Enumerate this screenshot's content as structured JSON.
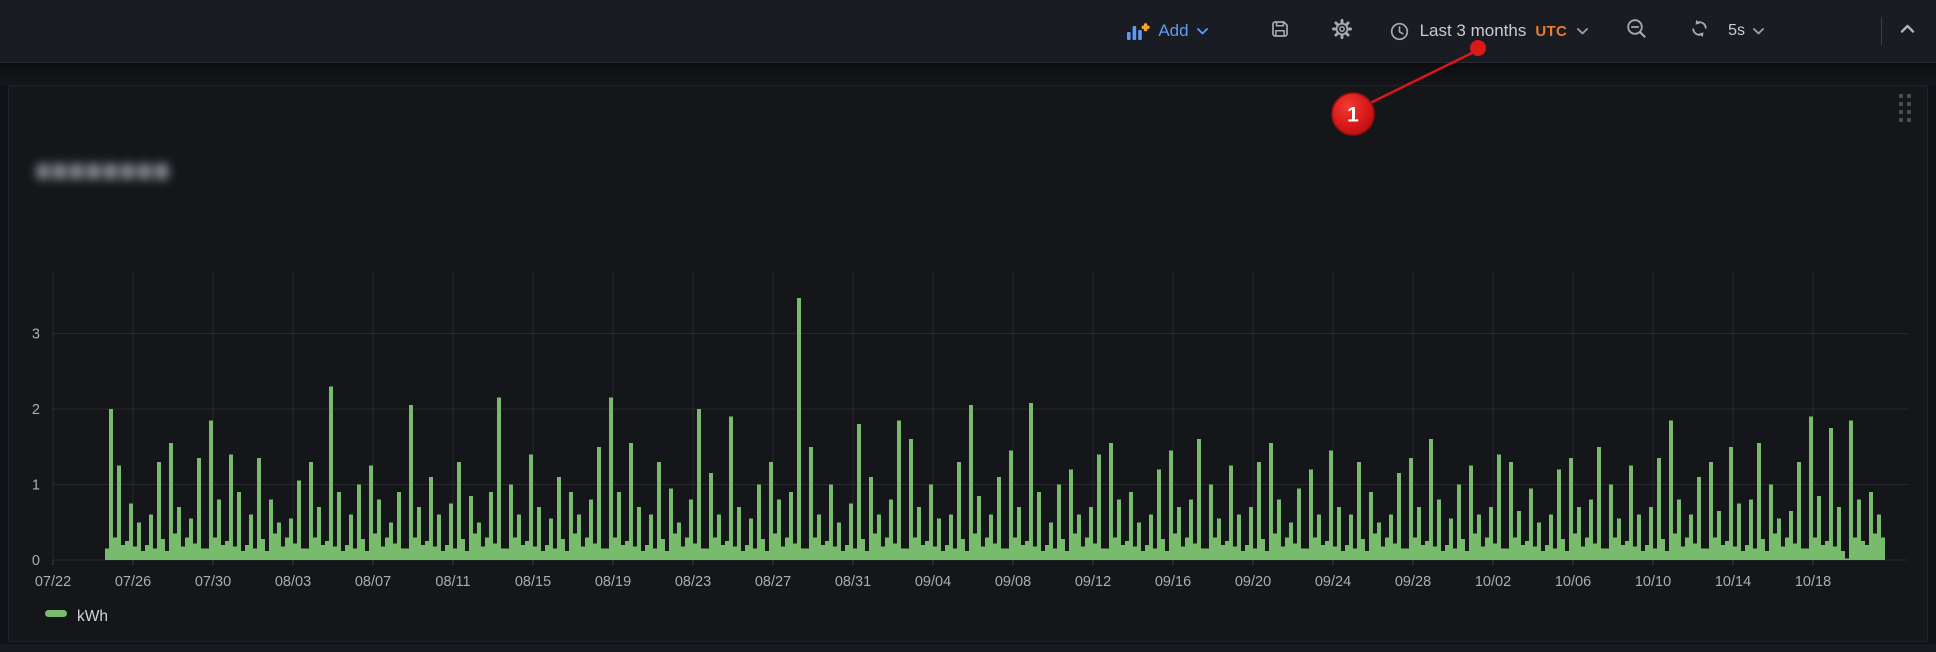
{
  "toolbar": {
    "add_label": "Add",
    "time_range_label": "Last 3 months",
    "timezone_label": "UTC",
    "refresh_interval_label": "5s",
    "colors": {
      "link_blue": "#5e9bf7",
      "utc_orange": "#eb7b2e",
      "icon_gray": "#a6aab2"
    }
  },
  "annotation": {
    "badge_label": "1",
    "color": "#d91a1a"
  },
  "panel": {
    "title_redacted": true
  },
  "chart_data": {
    "type": "bar",
    "title": "",
    "xlabel": "",
    "ylabel": "",
    "unit": "kWh",
    "legend_position": "bottom-left",
    "grid": true,
    "x_start": "07/25",
    "x_end": "10/21",
    "samples_per_day": 5,
    "x_ticks": [
      "07/22",
      "07/26",
      "07/30",
      "08/03",
      "08/07",
      "08/11",
      "08/15",
      "08/19",
      "08/23",
      "08/27",
      "08/31",
      "09/04",
      "09/08",
      "09/12",
      "09/16",
      "09/20",
      "09/24",
      "09/28",
      "10/02",
      "10/06",
      "10/10",
      "10/14",
      "10/18"
    ],
    "y_ticks": [
      0,
      1,
      2,
      3
    ],
    "ylim": [
      0,
      3.81
    ],
    "notable_peaks": [
      {
        "date": "07/25",
        "value": 2.0
      },
      {
        "date": "08/05",
        "value": 2.3
      },
      {
        "date": "08/19",
        "value": 2.15
      },
      {
        "date": "08/28",
        "value": 3.47
      },
      {
        "date": "09/09",
        "value": 2.08
      },
      {
        "date": "10/18",
        "value": 1.9
      }
    ],
    "series": [
      {
        "name": "kWh",
        "color": "#78bb6c",
        "values": [
          0.15,
          2.0,
          0.3,
          1.25,
          0.2,
          0.25,
          0.75,
          0.18,
          0.5,
          0.12,
          0.2,
          0.6,
          0.15,
          1.3,
          0.28,
          0.12,
          1.55,
          0.35,
          0.7,
          0.18,
          0.3,
          0.55,
          0.22,
          1.35,
          0.15,
          0.15,
          1.85,
          0.3,
          0.8,
          0.2,
          0.25,
          1.4,
          0.18,
          0.9,
          0.12,
          0.2,
          0.6,
          0.15,
          1.35,
          0.28,
          0.12,
          0.8,
          0.35,
          0.5,
          0.18,
          0.3,
          0.55,
          0.22,
          1.05,
          0.15,
          0.15,
          1.3,
          0.3,
          0.7,
          0.2,
          0.25,
          2.3,
          0.18,
          0.9,
          0.12,
          0.2,
          0.6,
          0.15,
          1.0,
          0.28,
          0.12,
          1.25,
          0.35,
          0.8,
          0.18,
          0.3,
          0.5,
          0.22,
          0.9,
          0.15,
          0.15,
          2.05,
          0.3,
          0.7,
          0.2,
          0.25,
          1.1,
          0.18,
          0.6,
          0.12,
          0.2,
          0.75,
          0.15,
          1.3,
          0.28,
          0.12,
          0.85,
          0.35,
          0.5,
          0.18,
          0.3,
          0.9,
          0.22,
          2.15,
          0.15,
          0.15,
          1.0,
          0.3,
          0.6,
          0.2,
          0.25,
          1.4,
          0.18,
          0.7,
          0.12,
          0.2,
          0.55,
          0.15,
          1.1,
          0.28,
          0.12,
          0.9,
          0.35,
          0.6,
          0.18,
          0.3,
          0.8,
          0.22,
          1.5,
          0.15,
          0.15,
          2.15,
          0.3,
          0.9,
          0.2,
          0.25,
          1.55,
          0.18,
          0.7,
          0.12,
          0.2,
          0.6,
          0.15,
          1.3,
          0.28,
          0.12,
          0.95,
          0.35,
          0.5,
          0.18,
          0.3,
          0.8,
          0.22,
          2.0,
          0.15,
          0.15,
          1.15,
          0.3,
          0.6,
          0.2,
          0.25,
          1.9,
          0.18,
          0.7,
          0.12,
          0.2,
          0.55,
          0.15,
          1.0,
          0.28,
          0.12,
          1.3,
          0.35,
          0.8,
          0.18,
          0.3,
          0.9,
          0.22,
          3.47,
          0.15,
          0.15,
          1.5,
          0.3,
          0.6,
          0.2,
          0.25,
          1.0,
          0.18,
          0.5,
          0.12,
          0.2,
          0.75,
          0.15,
          1.8,
          0.28,
          0.12,
          1.1,
          0.35,
          0.6,
          0.18,
          0.3,
          0.8,
          0.22,
          1.85,
          0.15,
          0.15,
          1.6,
          0.3,
          0.7,
          0.2,
          0.25,
          1.0,
          0.18,
          0.55,
          0.12,
          0.2,
          0.6,
          0.15,
          1.3,
          0.28,
          0.12,
          2.05,
          0.35,
          0.85,
          0.18,
          0.3,
          0.6,
          0.22,
          1.1,
          0.15,
          0.15,
          1.45,
          0.3,
          0.7,
          0.2,
          0.25,
          2.08,
          0.18,
          0.9,
          0.12,
          0.2,
          0.5,
          0.15,
          1.0,
          0.28,
          0.12,
          1.2,
          0.35,
          0.6,
          0.18,
          0.3,
          0.7,
          0.22,
          1.4,
          0.15,
          0.15,
          1.55,
          0.3,
          0.8,
          0.2,
          0.25,
          0.9,
          0.18,
          0.5,
          0.12,
          0.2,
          0.6,
          0.15,
          1.2,
          0.28,
          0.12,
          1.45,
          0.35,
          0.7,
          0.18,
          0.3,
          0.8,
          0.22,
          1.6,
          0.15,
          0.15,
          1.0,
          0.3,
          0.55,
          0.2,
          0.25,
          1.25,
          0.18,
          0.6,
          0.12,
          0.2,
          0.7,
          0.15,
          1.3,
          0.28,
          0.12,
          1.55,
          0.35,
          0.8,
          0.18,
          0.3,
          0.5,
          0.22,
          0.95,
          0.15,
          0.15,
          1.2,
          0.3,
          0.6,
          0.2,
          0.25,
          1.45,
          0.18,
          0.7,
          0.12,
          0.2,
          0.6,
          0.15,
          1.3,
          0.28,
          0.12,
          0.9,
          0.35,
          0.5,
          0.18,
          0.3,
          0.6,
          0.22,
          1.15,
          0.15,
          0.15,
          1.35,
          0.3,
          0.7,
          0.2,
          0.25,
          1.6,
          0.18,
          0.8,
          0.12,
          0.2,
          0.55,
          0.15,
          1.0,
          0.28,
          0.12,
          1.25,
          0.35,
          0.6,
          0.18,
          0.3,
          0.7,
          0.22,
          1.4,
          0.15,
          0.15,
          1.3,
          0.3,
          0.65,
          0.2,
          0.25,
          0.95,
          0.18,
          0.5,
          0.12,
          0.2,
          0.6,
          0.15,
          1.2,
          0.28,
          0.12,
          1.35,
          0.35,
          0.7,
          0.18,
          0.3,
          0.8,
          0.22,
          1.5,
          0.15,
          0.15,
          1.0,
          0.3,
          0.55,
          0.2,
          0.25,
          1.25,
          0.18,
          0.6,
          0.12,
          0.2,
          0.7,
          0.15,
          1.35,
          0.28,
          0.12,
          1.85,
          0.35,
          0.8,
          0.18,
          0.3,
          0.6,
          0.22,
          1.1,
          0.15,
          0.15,
          1.3,
          0.3,
          0.65,
          0.2,
          0.25,
          1.5,
          0.18,
          0.75,
          0.12,
          0.2,
          0.8,
          0.15,
          1.55,
          0.28,
          0.12,
          1.0,
          0.35,
          0.55,
          0.18,
          0.3,
          0.65,
          0.22,
          1.3,
          0.15,
          0.15,
          1.9,
          0.3,
          0.85,
          0.2,
          0.25,
          1.75,
          0.18,
          0.7,
          0.12,
          0.02,
          1.85,
          0.3,
          0.8,
          0.25,
          0.2,
          0.9,
          0.35,
          0.6,
          0.3
        ]
      }
    ]
  }
}
